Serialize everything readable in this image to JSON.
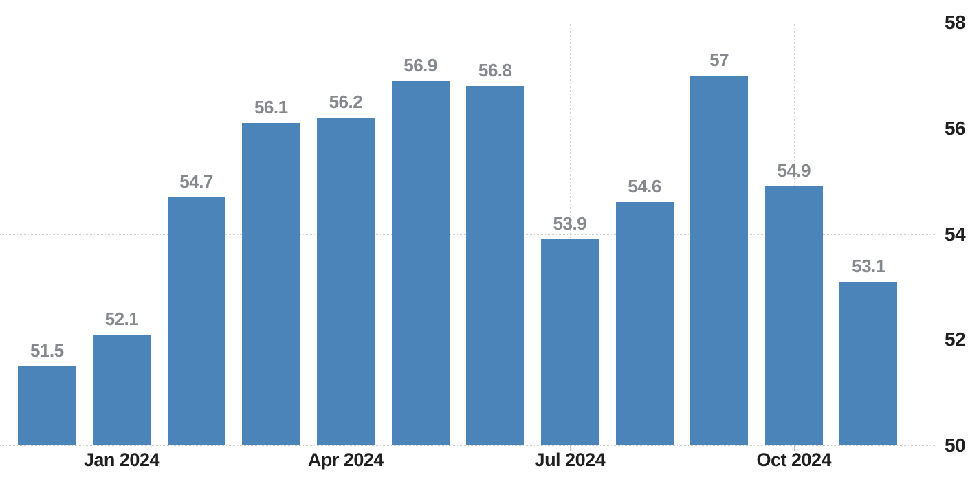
{
  "chart_data": {
    "type": "bar",
    "title": "",
    "xlabel": "",
    "ylabel": "",
    "ylim": [
      50,
      58
    ],
    "y_ticks": [
      58,
      56,
      54,
      52,
      50
    ],
    "y_axis_position": "right",
    "grid": "dotted",
    "bar_color": "#4a84b8",
    "value_label_color": "#85888d",
    "axis_label_color": "#1f1f1f",
    "gridline_color": "#cdcdcd",
    "background_color": "#ffffff",
    "values": [
      51.5,
      52.1,
      54.7,
      56.1,
      56.2,
      56.9,
      56.8,
      53.9,
      54.6,
      57,
      54.9,
      53.1
    ],
    "bar_value_labels": [
      "51.5",
      "52.1",
      "54.7",
      "56.1",
      "56.2",
      "56.9",
      "56.8",
      "53.9",
      "54.6",
      "57",
      "54.9",
      "53.1"
    ],
    "x_tick_labels": [
      {
        "bar_index": 1,
        "label": "Jan 2024"
      },
      {
        "bar_index": 4,
        "label": "Apr 2024"
      },
      {
        "bar_index": 7,
        "label": "Jul 2024"
      },
      {
        "bar_index": 10,
        "label": "Oct 2024"
      }
    ]
  }
}
